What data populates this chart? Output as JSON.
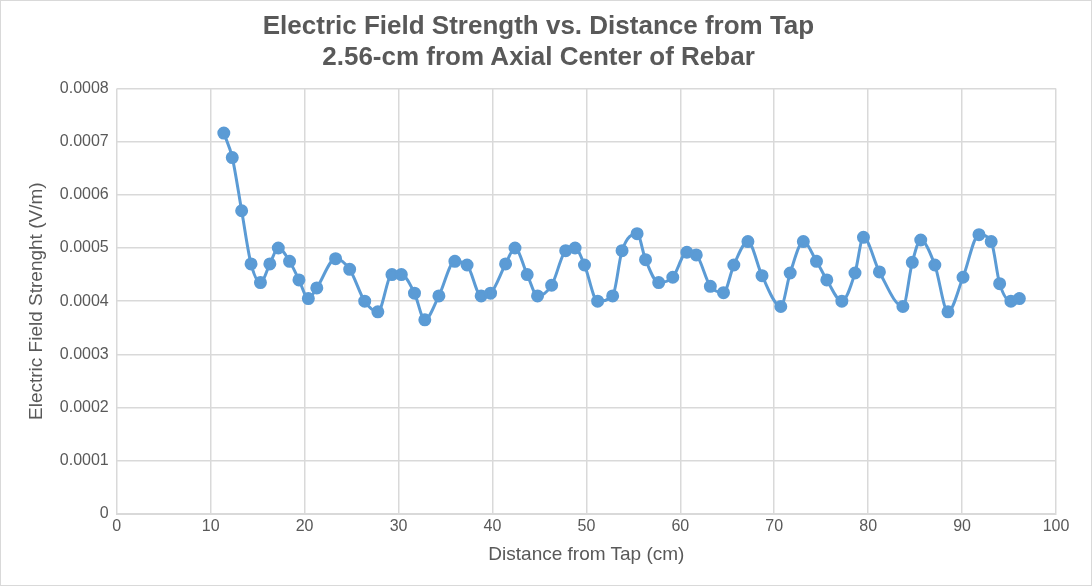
{
  "chart_data": {
    "type": "line",
    "title": "Electric Field Strength vs. Distance from Tap",
    "subtitle": "2.56-cm from Axial Center of Rebar",
    "xlabel": "Distance from Tap (cm)",
    "ylabel": "Electric Field Strenght (V/m)",
    "x": [
      11.4,
      12.3,
      13.3,
      14.3,
      15.3,
      16.3,
      17.2,
      18.4,
      19.4,
      20.4,
      21.3,
      23.3,
      24.8,
      26.4,
      27.8,
      29.3,
      30.3,
      31.7,
      32.8,
      34.3,
      36.0,
      37.3,
      38.8,
      39.8,
      41.4,
      42.4,
      43.7,
      44.8,
      46.3,
      47.8,
      48.8,
      49.8,
      51.2,
      52.8,
      53.8,
      55.4,
      56.3,
      57.7,
      59.2,
      60.7,
      61.7,
      63.2,
      64.6,
      65.7,
      67.2,
      68.7,
      70.7,
      71.7,
      73.1,
      74.5,
      75.6,
      77.2,
      78.6,
      79.5,
      81.2,
      83.7,
      84.7,
      85.6,
      87.1,
      88.5,
      90.1,
      91.8,
      93.1,
      94.0,
      95.2,
      96.1
    ],
    "series": [
      {
        "color": "#5b9bd5",
        "values": [
          0.000716,
          0.00067,
          0.00057,
          0.00047,
          0.000435,
          0.00047,
          0.0005,
          0.000475,
          0.00044,
          0.000405,
          0.000425,
          0.00048,
          0.00046,
          0.0004,
          0.00038,
          0.00045,
          0.00045,
          0.000415,
          0.000365,
          0.00041,
          0.000475,
          0.000468,
          0.00041,
          0.000415,
          0.00047,
          0.0005,
          0.00045,
          0.00041,
          0.00043,
          0.000495,
          0.0005,
          0.000468,
          0.0004,
          0.00041,
          0.000495,
          0.000527,
          0.000478,
          0.000435,
          0.000445,
          0.000492,
          0.000487,
          0.000428,
          0.000416,
          0.000468,
          0.000512,
          0.000448,
          0.00039,
          0.000453,
          0.000512,
          0.000475,
          0.00044,
          0.0004,
          0.000453,
          0.00052,
          0.000455,
          0.00039,
          0.000473,
          0.000515,
          0.000468,
          0.00038,
          0.000445,
          0.000525,
          0.000512,
          0.000433,
          0.0004,
          0.000405
        ]
      }
    ],
    "xlim": [
      0,
      100
    ],
    "xticks": [
      0,
      10,
      20,
      30,
      40,
      50,
      60,
      70,
      80,
      90,
      100
    ],
    "ylim": [
      0,
      0.0008
    ],
    "yticks": [
      {
        "value": 0,
        "label": "0"
      },
      {
        "value": 0.0001,
        "label": "0.0001"
      },
      {
        "value": 0.0002,
        "label": "0.0002"
      },
      {
        "value": 0.0003,
        "label": "0.0003"
      },
      {
        "value": 0.0004,
        "label": "0.0004"
      },
      {
        "value": 0.0005,
        "label": "0.0005"
      },
      {
        "value": 0.0006,
        "label": "0.0006"
      },
      {
        "value": 0.0007,
        "label": "0.0007"
      },
      {
        "value": 0.0008,
        "label": "0.0008"
      }
    ],
    "grid": true,
    "legend": false,
    "marker": "circle",
    "line_style": "solid"
  }
}
